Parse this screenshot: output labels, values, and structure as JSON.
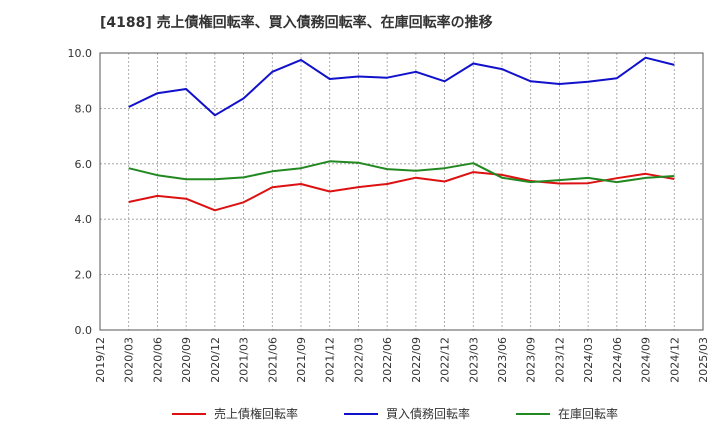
{
  "chart_data": {
    "type": "line",
    "title": "[4188]  売上債権回転率、買入債務回転率、在庫回転率の推移",
    "xlabel": "",
    "ylabel": "",
    "ylim": [
      0,
      10
    ],
    "yticks": [
      "0.0",
      "2.0",
      "4.0",
      "6.0",
      "8.0",
      "10.0"
    ],
    "grid": "dashed",
    "legend_position": "bottom",
    "categories": [
      "2019/12",
      "2020/03",
      "2020/06",
      "2020/09",
      "2020/12",
      "2021/03",
      "2021/06",
      "2021/09",
      "2021/12",
      "2022/03",
      "2022/06",
      "2022/09",
      "2022/12",
      "2023/03",
      "2023/06",
      "2023/09",
      "2023/12",
      "2024/03",
      "2024/06",
      "2024/09",
      "2024/12",
      "2025/03"
    ],
    "series": [
      {
        "name": "売上債権回転率",
        "color": "#dd1111",
        "values": [
          null,
          4.62,
          4.84,
          4.74,
          4.32,
          4.61,
          5.15,
          5.27,
          5.0,
          5.16,
          5.27,
          5.5,
          5.36,
          5.7,
          5.6,
          5.38,
          5.29,
          5.3,
          5.48,
          5.64,
          5.45,
          null
        ]
      },
      {
        "name": "買入債務回転率",
        "color": "#1111cc",
        "values": [
          null,
          8.05,
          8.55,
          8.7,
          7.75,
          8.36,
          9.32,
          9.75,
          9.06,
          9.15,
          9.11,
          9.32,
          8.98,
          9.62,
          9.42,
          8.98,
          8.88,
          8.96,
          9.09,
          9.83,
          9.57,
          null
        ]
      },
      {
        "name": "在庫回転率",
        "color": "#228822",
        "values": [
          null,
          5.84,
          5.59,
          5.44,
          5.44,
          5.51,
          5.73,
          5.84,
          6.09,
          6.04,
          5.81,
          5.75,
          5.84,
          6.02,
          5.5,
          5.34,
          5.41,
          5.49,
          5.34,
          5.49,
          5.56,
          null
        ]
      }
    ]
  }
}
